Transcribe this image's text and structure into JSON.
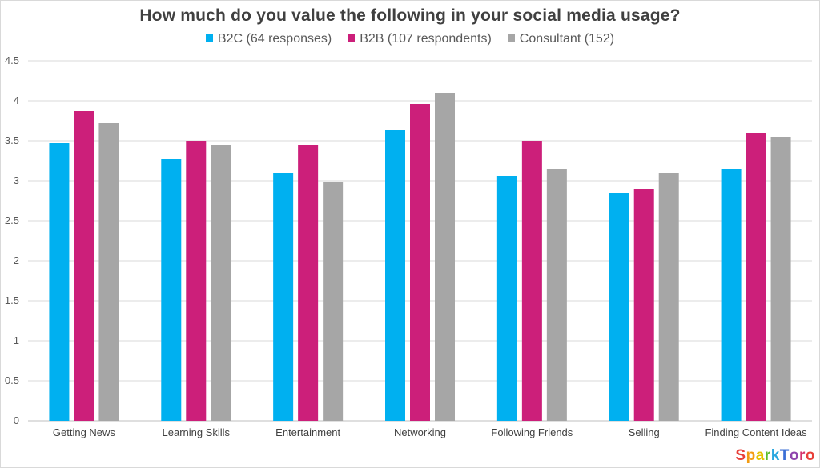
{
  "chart_data": {
    "type": "bar",
    "title": "How much do you value the following in your social media usage?",
    "categories": [
      "Getting News",
      "Learning Skills",
      "Entertainment",
      "Networking",
      "Following Friends",
      "Selling",
      "Finding Content Ideas"
    ],
    "series": [
      {
        "name": "B2C (64 responses)",
        "color": "#00b0f0",
        "values": [
          3.47,
          3.27,
          3.1,
          3.63,
          3.06,
          2.85,
          3.15
        ]
      },
      {
        "name": "B2B (107 respondents)",
        "color": "#cc1f7a",
        "values": [
          3.87,
          3.5,
          3.45,
          3.96,
          3.5,
          2.9,
          3.6
        ]
      },
      {
        "name": "Consultant (152)",
        "color": "#a6a6a6",
        "values": [
          3.72,
          3.45,
          2.99,
          4.1,
          3.15,
          3.1,
          3.55
        ]
      }
    ],
    "ylim": [
      0,
      4.5
    ],
    "yticks": [
      "0",
      "0.5",
      "1",
      "1.5",
      "2",
      "2.5",
      "3",
      "3.5",
      "4",
      "4.5"
    ],
    "grid": true,
    "legend_position": "top"
  },
  "brand": {
    "text": "SparkToro",
    "colors": [
      "#e8403a",
      "#f39c12",
      "#e6c200",
      "#5bbd2b",
      "#2aa7df",
      "#3b6fd6",
      "#8e44ad",
      "#d6336c",
      "#e8403a"
    ]
  }
}
